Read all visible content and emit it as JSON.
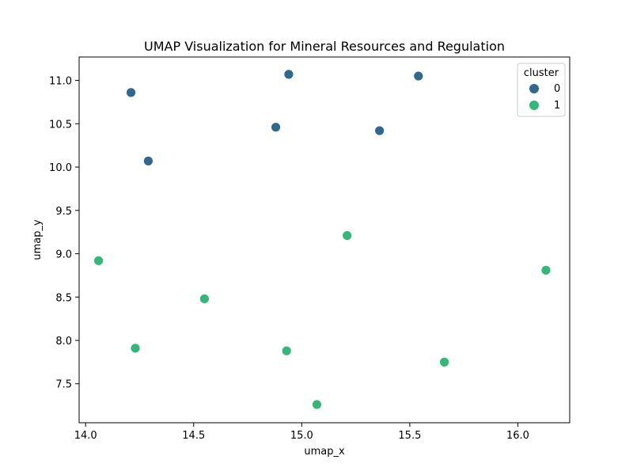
{
  "chart_data": {
    "type": "scatter",
    "title": "UMAP Visualization for Mineral Resources and Regulation",
    "xlabel": "umap_x",
    "ylabel": "umap_y",
    "xlim": [
      13.97,
      16.24
    ],
    "ylim": [
      7.05,
      11.27
    ],
    "xticks": [
      14.0,
      14.5,
      15.0,
      15.5,
      16.0
    ],
    "xtick_labels": [
      "14.0",
      "14.5",
      "15.0",
      "15.5",
      "16.0"
    ],
    "yticks": [
      7.5,
      8.0,
      8.5,
      9.0,
      9.5,
      10.0,
      10.5,
      11.0
    ],
    "ytick_labels": [
      "7.5",
      "8.0",
      "8.5",
      "9.0",
      "9.5",
      "10.0",
      "10.5",
      "11.0"
    ],
    "grid": false,
    "legend": {
      "title": "cluster",
      "placement": "top-right",
      "entries": [
        "0",
        "1"
      ]
    },
    "series": [
      {
        "name": "0",
        "color": "#31688e",
        "points": [
          {
            "x": 14.21,
            "y": 10.86
          },
          {
            "x": 14.29,
            "y": 10.07
          },
          {
            "x": 14.88,
            "y": 10.46
          },
          {
            "x": 14.94,
            "y": 11.07
          },
          {
            "x": 15.36,
            "y": 10.42
          },
          {
            "x": 15.54,
            "y": 11.05
          }
        ]
      },
      {
        "name": "1",
        "color": "#35b779",
        "points": [
          {
            "x": 14.06,
            "y": 8.92
          },
          {
            "x": 14.23,
            "y": 7.91
          },
          {
            "x": 14.55,
            "y": 8.48
          },
          {
            "x": 14.93,
            "y": 7.88
          },
          {
            "x": 15.07,
            "y": 7.26
          },
          {
            "x": 15.21,
            "y": 9.21
          },
          {
            "x": 15.66,
            "y": 7.75
          },
          {
            "x": 16.13,
            "y": 8.81
          }
        ]
      }
    ]
  }
}
